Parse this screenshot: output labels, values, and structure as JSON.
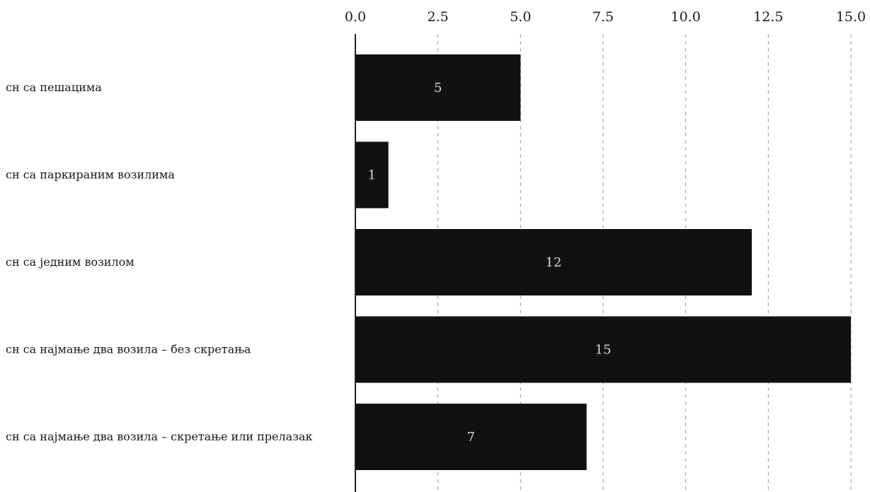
{
  "chart_data": {
    "type": "bar",
    "orientation": "horizontal",
    "categories": [
      "сн са пешацима",
      "сн са паркираним возилима",
      "сн са једним возилом",
      "сн са најмање два возила – без скретања",
      "сн са најмање два возила – скретање или прелазак"
    ],
    "values": [
      5,
      1,
      12,
      15,
      7
    ],
    "xlim": [
      0,
      15
    ],
    "xticks": [
      "0.0",
      "2.5",
      "5.0",
      "7.5",
      "10.0",
      "12.5",
      "15.0"
    ],
    "x_axis_position": "top",
    "grid": true,
    "colors": {
      "bar": "#111111",
      "value_label": "#d8d8d8",
      "grid": "#9a9a9a"
    }
  }
}
